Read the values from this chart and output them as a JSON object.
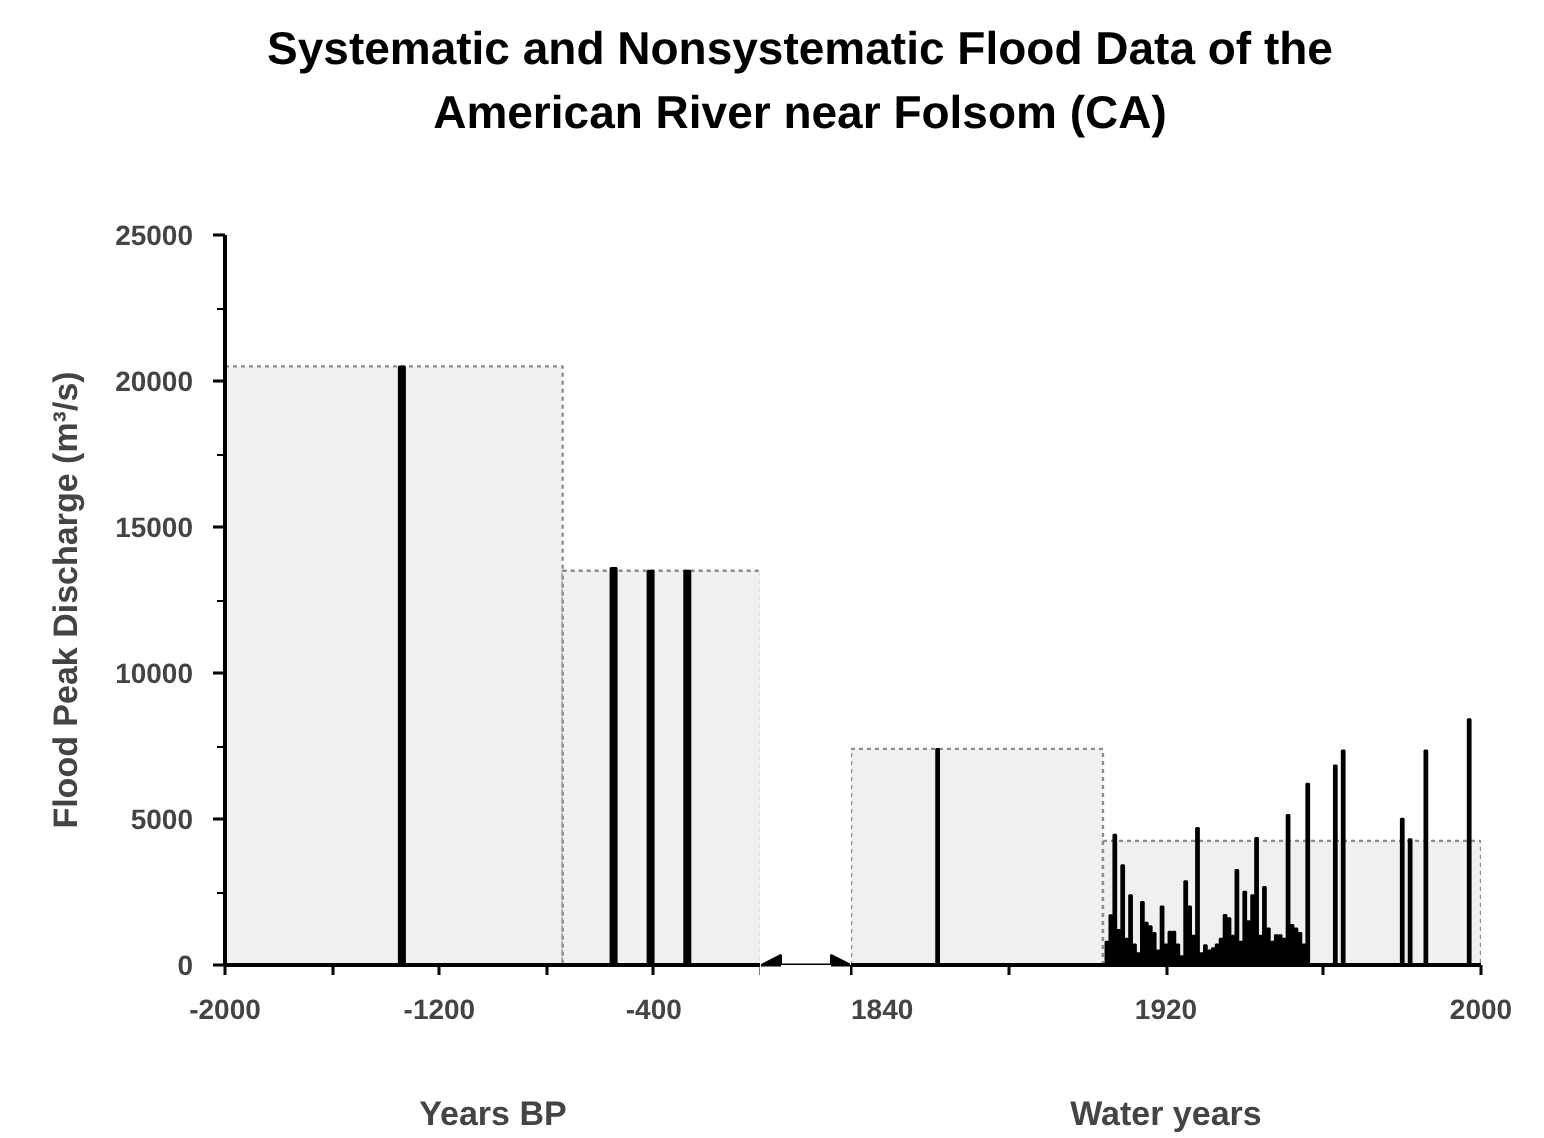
{
  "chart_data": [
    {
      "type": "histogram",
      "title": "Systematic and Nonsystematic Flood Data of the American River near Folsom (CA)",
      "xlabel": "Years BP",
      "ylabel": "Flood Peak Discharge (m³/s)",
      "bins": [
        -2000,
        -740,
        0
      ],
      "values": [
        20500,
        13500
      ],
      "color": "#f0f0f0",
      "series": [
        {
          "type": "bar",
          "color": "#000000",
          "x": [
            -1340,
            -550,
            -412,
            -275
          ],
          "values": [
            20500,
            13600,
            13500,
            13500
          ]
        }
      ],
      "xlim": [
        -2000,
        0
      ],
      "xticks": [
        -2000,
        {
          "value": -1600,
          "label": null
        },
        -1200,
        {
          "value": -800,
          "label": null
        },
        -400,
        {
          "value": 0,
          "label": null
        }
      ],
      "ylim": [
        0,
        25000
      ],
      "yticks": [
        0,
        5000,
        10000,
        15000,
        20000,
        25000
      ],
      "grid": false
    },
    {
      "type": "histogram",
      "xlabel": "Water years",
      "bins": [
        1840,
        1904,
        2000
      ],
      "values": [
        7400,
        4250
      ],
      "color": "#f0f0f0",
      "series": [
        {
          "type": "bar",
          "color": "#000000",
          "x": [
            1862,
            1905,
            1906,
            1907,
            1908,
            1909,
            1910,
            1911,
            1912,
            1913,
            1914,
            1915,
            1916,
            1917,
            1918,
            1919,
            1920,
            1921,
            1922,
            1923,
            1924,
            1925,
            1926,
            1927,
            1928,
            1929,
            1930,
            1931,
            1932,
            1933,
            1934,
            1935,
            1936,
            1937,
            1938,
            1939,
            1940,
            1941,
            1942,
            1943,
            1944,
            1945,
            1946,
            1947,
            1948,
            1949,
            1950,
            1951,
            1952,
            1953,
            1954,
            1955,
            1956,
            1963,
            1965,
            1980,
            1982,
            1986,
            1997
          ],
          "values": [
            7400,
            800,
            1700,
            4460,
            1200,
            3420,
            900,
            2390,
            700,
            400,
            2160,
            1450,
            1330,
            1100,
            500,
            2000,
            700,
            1140,
            1140,
            700,
            300,
            2870,
            2000,
            1000,
            4690,
            400,
            680,
            500,
            570,
            700,
            900,
            1710,
            1600,
            1000,
            3250,
            800,
            2510,
            1500,
            2390,
            4350,
            1000,
            2670,
            1250,
            800,
            1020,
            1020,
            900,
            5140,
            1370,
            1250,
            1100,
            700,
            6210,
            6830,
            7350,
            5010,
            4310,
            7350,
            8420
          ]
        }
      ],
      "xlim": [
        1840,
        2000
      ],
      "xticks": [
        1840,
        {
          "value": 1880,
          "label": null
        },
        1920,
        {
          "value": 1960,
          "label": null
        },
        2000
      ],
      "ylim": [
        0,
        25000
      ],
      "yticks": [
        0,
        5000,
        10000,
        15000,
        20000,
        25000
      ],
      "grid": false,
      "tick_labels": "x"
    }
  ]
}
